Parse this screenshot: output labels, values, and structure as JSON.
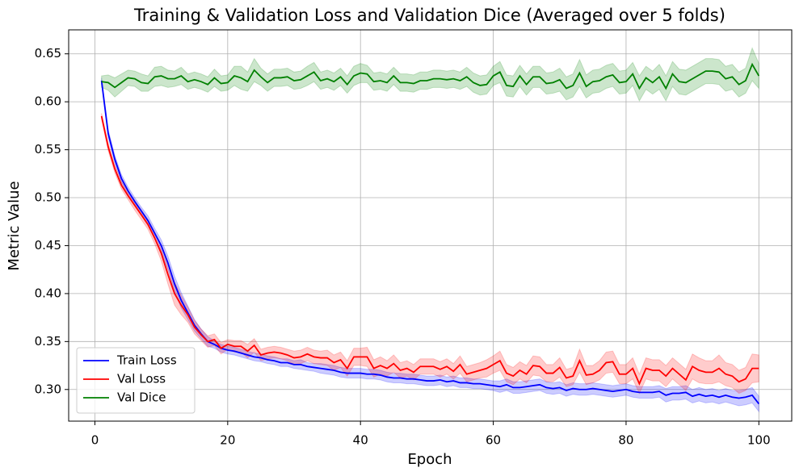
{
  "chart_data": {
    "type": "line",
    "title": "Training & Validation Loss and Validation Dice (Averaged over 5 folds)",
    "x_label": "Epoch",
    "y_label": "Metric Value",
    "x": [
      1,
      2,
      3,
      4,
      5,
      6,
      7,
      8,
      9,
      10,
      11,
      12,
      13,
      14,
      15,
      16,
      17,
      18,
      19,
      20,
      21,
      22,
      23,
      24,
      25,
      26,
      27,
      28,
      29,
      30,
      31,
      32,
      33,
      34,
      35,
      36,
      37,
      38,
      39,
      40,
      41,
      42,
      43,
      44,
      45,
      46,
      47,
      48,
      49,
      50,
      51,
      52,
      53,
      54,
      55,
      56,
      57,
      58,
      59,
      60,
      61,
      62,
      63,
      64,
      65,
      66,
      67,
      68,
      69,
      70,
      71,
      72,
      73,
      74,
      75,
      76,
      77,
      78,
      79,
      80,
      81,
      82,
      83,
      84,
      85,
      86,
      87,
      88,
      89,
      90,
      91,
      92,
      93,
      94,
      95,
      96,
      97,
      98,
      99,
      100
    ],
    "series": [
      {
        "name": "Train Loss",
        "color": "#0000ff",
        "values": [
          0.622,
          0.567,
          0.54,
          0.52,
          0.507,
          0.496,
          0.486,
          0.476,
          0.463,
          0.45,
          0.432,
          0.41,
          0.393,
          0.38,
          0.367,
          0.358,
          0.35,
          0.347,
          0.343,
          0.341,
          0.34,
          0.338,
          0.336,
          0.334,
          0.333,
          0.331,
          0.33,
          0.328,
          0.328,
          0.326,
          0.326,
          0.324,
          0.323,
          0.322,
          0.321,
          0.32,
          0.318,
          0.317,
          0.317,
          0.317,
          0.316,
          0.316,
          0.315,
          0.313,
          0.312,
          0.312,
          0.311,
          0.311,
          0.31,
          0.309,
          0.309,
          0.31,
          0.308,
          0.309,
          0.307,
          0.307,
          0.306,
          0.306,
          0.305,
          0.304,
          0.303,
          0.305,
          0.302,
          0.302,
          0.303,
          0.304,
          0.305,
          0.302,
          0.301,
          0.302,
          0.299,
          0.301,
          0.3,
          0.3,
          0.301,
          0.3,
          0.299,
          0.298,
          0.299,
          0.3,
          0.298,
          0.297,
          0.297,
          0.297,
          0.298,
          0.294,
          0.296,
          0.296,
          0.297,
          0.293,
          0.295,
          0.293,
          0.294,
          0.292,
          0.294,
          0.292,
          0.291,
          0.292,
          0.294,
          0.285
        ],
        "errors": [
          0.003,
          0.004,
          0.004,
          0.004,
          0.004,
          0.004,
          0.004,
          0.005,
          0.005,
          0.006,
          0.007,
          0.008,
          0.008,
          0.007,
          0.006,
          0.005,
          0.005,
          0.004,
          0.004,
          0.004,
          0.004,
          0.004,
          0.004,
          0.004,
          0.004,
          0.004,
          0.004,
          0.004,
          0.004,
          0.004,
          0.005,
          0.004,
          0.004,
          0.005,
          0.005,
          0.005,
          0.005,
          0.005,
          0.005,
          0.005,
          0.005,
          0.005,
          0.005,
          0.005,
          0.005,
          0.005,
          0.005,
          0.005,
          0.005,
          0.005,
          0.005,
          0.005,
          0.005,
          0.005,
          0.005,
          0.005,
          0.005,
          0.005,
          0.005,
          0.005,
          0.006,
          0.006,
          0.006,
          0.006,
          0.006,
          0.006,
          0.006,
          0.006,
          0.006,
          0.006,
          0.006,
          0.006,
          0.006,
          0.006,
          0.006,
          0.006,
          0.006,
          0.006,
          0.006,
          0.006,
          0.006,
          0.006,
          0.006,
          0.006,
          0.006,
          0.007,
          0.007,
          0.007,
          0.007,
          0.007,
          0.007,
          0.007,
          0.007,
          0.007,
          0.007,
          0.007,
          0.008,
          0.008,
          0.008,
          0.008
        ]
      },
      {
        "name": "Val Loss",
        "color": "#ff0000",
        "values": [
          0.585,
          0.553,
          0.53,
          0.513,
          0.502,
          0.492,
          0.482,
          0.472,
          0.458,
          0.442,
          0.42,
          0.4,
          0.388,
          0.378,
          0.365,
          0.357,
          0.35,
          0.352,
          0.343,
          0.347,
          0.345,
          0.345,
          0.34,
          0.346,
          0.336,
          0.338,
          0.339,
          0.338,
          0.336,
          0.333,
          0.334,
          0.337,
          0.334,
          0.333,
          0.333,
          0.328,
          0.331,
          0.322,
          0.334,
          0.334,
          0.334,
          0.322,
          0.325,
          0.322,
          0.327,
          0.32,
          0.322,
          0.318,
          0.324,
          0.324,
          0.324,
          0.321,
          0.324,
          0.319,
          0.326,
          0.316,
          0.318,
          0.32,
          0.322,
          0.326,
          0.33,
          0.317,
          0.314,
          0.32,
          0.316,
          0.325,
          0.324,
          0.317,
          0.317,
          0.323,
          0.312,
          0.314,
          0.33,
          0.315,
          0.316,
          0.32,
          0.328,
          0.329,
          0.316,
          0.316,
          0.322,
          0.306,
          0.322,
          0.32,
          0.32,
          0.314,
          0.322,
          0.316,
          0.31,
          0.324,
          0.32,
          0.318,
          0.318,
          0.322,
          0.316,
          0.314,
          0.308,
          0.311,
          0.322,
          0.322
        ],
        "errors": [
          0.003,
          0.004,
          0.004,
          0.004,
          0.004,
          0.005,
          0.005,
          0.005,
          0.006,
          0.008,
          0.01,
          0.012,
          0.01,
          0.008,
          0.007,
          0.006,
          0.006,
          0.006,
          0.006,
          0.005,
          0.006,
          0.006,
          0.007,
          0.007,
          0.006,
          0.006,
          0.006,
          0.006,
          0.006,
          0.007,
          0.007,
          0.007,
          0.007,
          0.007,
          0.008,
          0.008,
          0.008,
          0.008,
          0.009,
          0.009,
          0.01,
          0.009,
          0.009,
          0.008,
          0.009,
          0.008,
          0.008,
          0.008,
          0.008,
          0.008,
          0.008,
          0.008,
          0.008,
          0.008,
          0.009,
          0.008,
          0.008,
          0.008,
          0.009,
          0.009,
          0.01,
          0.009,
          0.009,
          0.009,
          0.009,
          0.01,
          0.01,
          0.009,
          0.009,
          0.01,
          0.009,
          0.009,
          0.012,
          0.01,
          0.009,
          0.01,
          0.011,
          0.011,
          0.01,
          0.01,
          0.011,
          0.01,
          0.011,
          0.011,
          0.011,
          0.011,
          0.011,
          0.011,
          0.011,
          0.013,
          0.013,
          0.012,
          0.012,
          0.014,
          0.012,
          0.012,
          0.012,
          0.012,
          0.015,
          0.014
        ]
      },
      {
        "name": "Val Dice",
        "color": "#008000",
        "values": [
          0.621,
          0.62,
          0.615,
          0.62,
          0.625,
          0.624,
          0.62,
          0.619,
          0.626,
          0.627,
          0.624,
          0.624,
          0.627,
          0.621,
          0.623,
          0.621,
          0.618,
          0.625,
          0.619,
          0.62,
          0.627,
          0.625,
          0.621,
          0.633,
          0.626,
          0.62,
          0.625,
          0.625,
          0.626,
          0.622,
          0.623,
          0.627,
          0.631,
          0.622,
          0.624,
          0.621,
          0.626,
          0.618,
          0.627,
          0.63,
          0.629,
          0.621,
          0.622,
          0.62,
          0.627,
          0.62,
          0.62,
          0.619,
          0.622,
          0.622,
          0.624,
          0.624,
          0.623,
          0.624,
          0.622,
          0.626,
          0.62,
          0.617,
          0.618,
          0.627,
          0.631,
          0.617,
          0.616,
          0.627,
          0.618,
          0.626,
          0.626,
          0.619,
          0.62,
          0.623,
          0.614,
          0.617,
          0.63,
          0.616,
          0.621,
          0.622,
          0.626,
          0.628,
          0.62,
          0.621,
          0.629,
          0.614,
          0.625,
          0.62,
          0.626,
          0.614,
          0.629,
          0.621,
          0.62,
          0.624,
          0.628,
          0.632,
          0.632,
          0.631,
          0.624,
          0.626,
          0.618,
          0.622,
          0.639,
          0.627
        ],
        "errors": [
          0.006,
          0.008,
          0.01,
          0.009,
          0.008,
          0.008,
          0.009,
          0.008,
          0.01,
          0.01,
          0.009,
          0.008,
          0.009,
          0.008,
          0.008,
          0.008,
          0.008,
          0.009,
          0.008,
          0.008,
          0.01,
          0.012,
          0.01,
          0.012,
          0.009,
          0.009,
          0.009,
          0.009,
          0.009,
          0.009,
          0.009,
          0.01,
          0.01,
          0.009,
          0.009,
          0.009,
          0.009,
          0.009,
          0.01,
          0.01,
          0.009,
          0.009,
          0.009,
          0.009,
          0.009,
          0.009,
          0.009,
          0.009,
          0.009,
          0.009,
          0.009,
          0.009,
          0.009,
          0.009,
          0.009,
          0.01,
          0.01,
          0.01,
          0.01,
          0.01,
          0.011,
          0.011,
          0.011,
          0.011,
          0.011,
          0.011,
          0.011,
          0.011,
          0.011,
          0.012,
          0.012,
          0.012,
          0.014,
          0.012,
          0.012,
          0.012,
          0.012,
          0.012,
          0.012,
          0.012,
          0.012,
          0.013,
          0.012,
          0.012,
          0.013,
          0.013,
          0.013,
          0.013,
          0.013,
          0.013,
          0.013,
          0.013,
          0.013,
          0.013,
          0.013,
          0.013,
          0.013,
          0.013,
          0.017,
          0.013
        ]
      }
    ],
    "xlim": [
      -3.95,
      104.95
    ],
    "ylim": [
      0.267,
      0.675
    ],
    "xticks": [
      0,
      20,
      40,
      60,
      80,
      100
    ],
    "yticks": [
      {
        "value": 0.3,
        "label": "0.30"
      },
      0.35,
      {
        "value": 0.4,
        "label": "0.40"
      },
      0.45,
      {
        "value": 0.5,
        "label": "0.50"
      },
      0.55,
      {
        "value": 0.6,
        "label": "0.60"
      },
      0.65
    ],
    "grid": true,
    "legend": "lower left",
    "band_opacity": 0.2
  }
}
